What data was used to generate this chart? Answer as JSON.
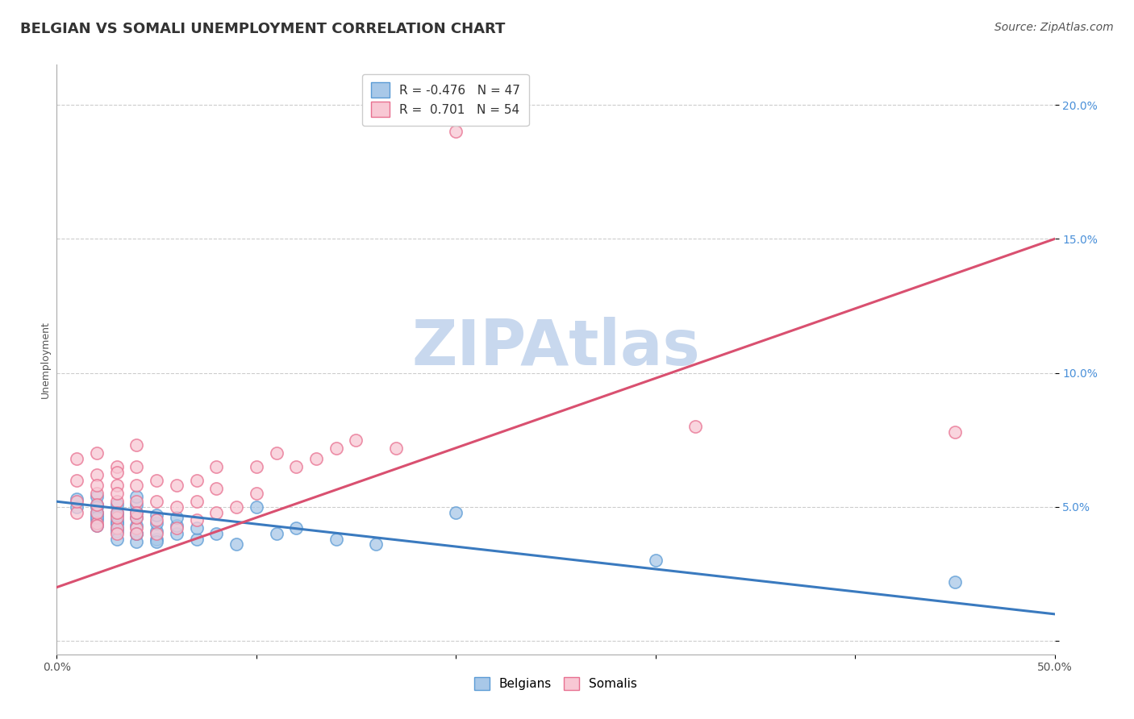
{
  "title": "BELGIAN VS SOMALI UNEMPLOYMENT CORRELATION CHART",
  "source": "Source: ZipAtlas.com",
  "ylabel": "Unemployment",
  "yticks": [
    0.0,
    0.05,
    0.1,
    0.15,
    0.2
  ],
  "ytick_labels": [
    "",
    "5.0%",
    "10.0%",
    "15.0%",
    "20.0%"
  ],
  "xlim": [
    0.0,
    0.5
  ],
  "ylim": [
    -0.005,
    0.215
  ],
  "watermark": "ZIPAtlas",
  "blue_color": "#a8c8e8",
  "blue_edge": "#5b9bd5",
  "pink_color": "#f8c8d4",
  "pink_edge": "#e87090",
  "blue_line_color": "#3a7abf",
  "pink_line_color": "#d95070",
  "grid_color": "#cccccc",
  "background_color": "#ffffff",
  "title_color": "#333333",
  "axis_color": "#555555",
  "ytick_color": "#4a90d9",
  "watermark_color": "#c8d8ee",
  "title_fontsize": 13,
  "source_fontsize": 10,
  "ylabel_fontsize": 9,
  "tick_fontsize": 10,
  "watermark_fontsize": 56,
  "legend_fontsize": 11,
  "belgian_x": [
    0.01,
    0.01,
    0.02,
    0.02,
    0.02,
    0.02,
    0.02,
    0.02,
    0.02,
    0.02,
    0.03,
    0.03,
    0.03,
    0.03,
    0.03,
    0.03,
    0.03,
    0.03,
    0.03,
    0.04,
    0.04,
    0.04,
    0.04,
    0.04,
    0.04,
    0.04,
    0.04,
    0.05,
    0.05,
    0.05,
    0.05,
    0.05,
    0.06,
    0.06,
    0.06,
    0.07,
    0.07,
    0.08,
    0.09,
    0.1,
    0.11,
    0.12,
    0.14,
    0.16,
    0.2,
    0.3,
    0.45
  ],
  "belgian_y": [
    0.05,
    0.053,
    0.045,
    0.048,
    0.051,
    0.054,
    0.047,
    0.05,
    0.043,
    0.046,
    0.042,
    0.045,
    0.048,
    0.044,
    0.041,
    0.038,
    0.051,
    0.047,
    0.044,
    0.04,
    0.043,
    0.046,
    0.037,
    0.04,
    0.048,
    0.051,
    0.054,
    0.038,
    0.041,
    0.044,
    0.047,
    0.037,
    0.04,
    0.043,
    0.046,
    0.038,
    0.042,
    0.04,
    0.036,
    0.05,
    0.04,
    0.042,
    0.038,
    0.036,
    0.048,
    0.03,
    0.022
  ],
  "somali_x": [
    0.01,
    0.01,
    0.01,
    0.01,
    0.02,
    0.02,
    0.02,
    0.02,
    0.02,
    0.02,
    0.02,
    0.02,
    0.03,
    0.03,
    0.03,
    0.03,
    0.03,
    0.03,
    0.03,
    0.03,
    0.03,
    0.04,
    0.04,
    0.04,
    0.04,
    0.04,
    0.04,
    0.04,
    0.04,
    0.05,
    0.05,
    0.05,
    0.05,
    0.06,
    0.06,
    0.06,
    0.07,
    0.07,
    0.07,
    0.08,
    0.08,
    0.08,
    0.09,
    0.1,
    0.1,
    0.11,
    0.12,
    0.13,
    0.14,
    0.15,
    0.17,
    0.2,
    0.32,
    0.45
  ],
  "somali_y": [
    0.048,
    0.052,
    0.06,
    0.068,
    0.044,
    0.048,
    0.055,
    0.062,
    0.07,
    0.043,
    0.051,
    0.058,
    0.042,
    0.046,
    0.052,
    0.058,
    0.065,
    0.04,
    0.048,
    0.055,
    0.063,
    0.042,
    0.046,
    0.052,
    0.058,
    0.065,
    0.073,
    0.04,
    0.048,
    0.04,
    0.045,
    0.052,
    0.06,
    0.042,
    0.05,
    0.058,
    0.045,
    0.052,
    0.06,
    0.048,
    0.057,
    0.065,
    0.05,
    0.055,
    0.065,
    0.07,
    0.065,
    0.068,
    0.072,
    0.075,
    0.072,
    0.19,
    0.08,
    0.078
  ],
  "bel_line_x0": 0.0,
  "bel_line_y0": 0.052,
  "bel_line_x1": 0.5,
  "bel_line_y1": 0.01,
  "som_line_x0": 0.0,
  "som_line_y0": 0.02,
  "som_line_x1": 0.5,
  "som_line_y1": 0.15
}
